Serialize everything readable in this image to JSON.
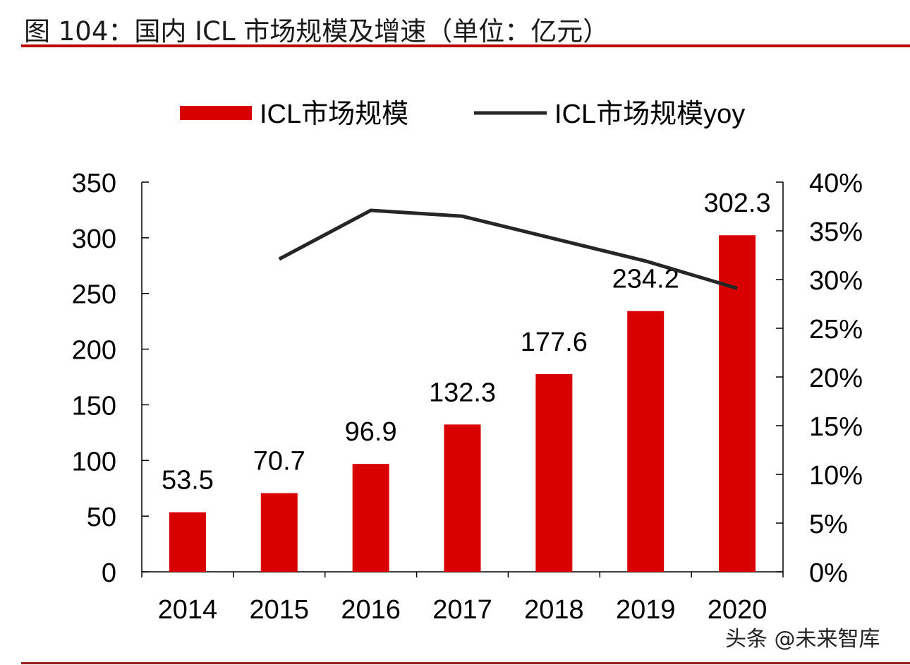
{
  "title": "图 104：国内 ICL 市场规模及增速（单位：亿元）",
  "watermark": "头条 @未来智库",
  "chart_data": {
    "type": "bar+line",
    "title": "",
    "categories": [
      "2014",
      "2015",
      "2016",
      "2017",
      "2018",
      "2019",
      "2020"
    ],
    "series": [
      {
        "name": "ICL市场规模",
        "type": "bar",
        "axis": "left",
        "color": "#d90000",
        "values": [
          53.5,
          70.7,
          96.9,
          132.3,
          177.6,
          234.2,
          302.3
        ],
        "labels": [
          "53.5",
          "70.7",
          "96.9",
          "132.3",
          "177.6",
          "234.2",
          "302.3"
        ]
      },
      {
        "name": "ICL市场规模yoy",
        "type": "line",
        "axis": "right",
        "color": "#262626",
        "values": [
          null,
          32.1,
          37.1,
          36.5,
          34.2,
          31.9,
          29.1
        ]
      }
    ],
    "left_axis": {
      "ylim": [
        0,
        350
      ],
      "ticks": [
        "0",
        "50",
        "100",
        "150",
        "200",
        "250",
        "300",
        "350"
      ]
    },
    "right_axis": {
      "ylim": [
        0,
        40
      ],
      "ticks": [
        "0%",
        "5%",
        "10%",
        "15%",
        "20%",
        "25%",
        "30%",
        "35%",
        "40%"
      ]
    },
    "legend": "top",
    "grid": false
  }
}
